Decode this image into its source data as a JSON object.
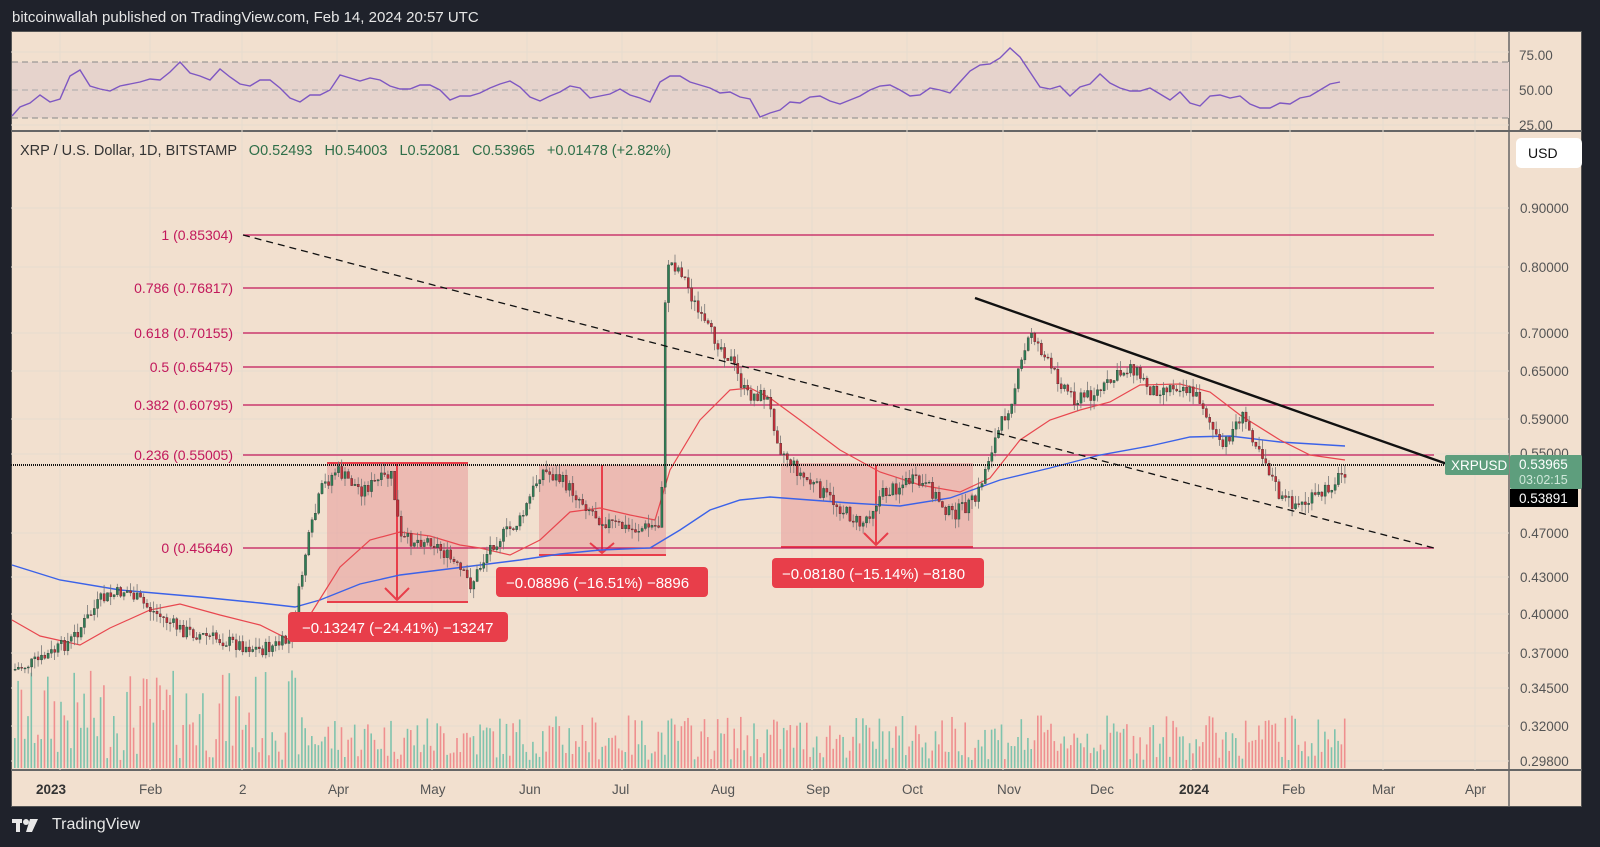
{
  "header": {
    "publish_line": "bitcoinwallah published on TradingView.com, Feb 14, 2024 20:57 UTC"
  },
  "legend": {
    "symbol": "XRP / U.S. Dollar, 1D, BITSTAMP",
    "open": "O0.52493",
    "high": "H0.54003",
    "low": "L0.52081",
    "close": "C0.53965",
    "change": "+0.01478 (+2.82%)"
  },
  "currency_button": "USD",
  "price_tag": {
    "symbol": "XRPUSD",
    "price": "0.53965",
    "countdown": "03:02:15",
    "crosshair_price": "0.53891"
  },
  "footer": {
    "brand": "TradingView"
  },
  "colors": {
    "background": "#f2e0cf",
    "up": "#2f7d55",
    "down": "#c0303a",
    "fib": "#c2185b",
    "ma50": "#e8474f",
    "ma200": "#3b62e8",
    "rsi": "#7e57c2",
    "measure": "#e83e4a",
    "price_tag": "#5e9e7d"
  },
  "chart_data": [
    {
      "type": "candlestick",
      "title": "XRP / U.S. Dollar, 1D, BITSTAMP",
      "ylabel": "USD",
      "xlabel": "",
      "y_axis_ticks": [
        "0.90000",
        "0.80000",
        "0.70000",
        "0.65000",
        "0.59000",
        "0.55000",
        "0.47000",
        "0.43000",
        "0.40000",
        "0.37000",
        "0.34500",
        "0.32000",
        "0.29800"
      ],
      "x_axis_ticks": [
        "2023",
        "Feb",
        "2",
        "Apr",
        "May",
        "Jun",
        "Jul",
        "Aug",
        "Sep",
        "Oct",
        "Nov",
        "Dec",
        "2024",
        "Feb",
        "Mar",
        "Apr"
      ],
      "ylim": [
        0.29,
        0.98
      ],
      "last_ohlc": {
        "open": 0.52493,
        "high": 0.54003,
        "low": 0.52081,
        "close": 0.53965,
        "change": 0.01478,
        "change_pct": 2.82
      },
      "fibonacci": [
        {
          "level": "1",
          "price": 0.85304,
          "label": "1 (0.85304)"
        },
        {
          "level": "0.786",
          "price": 0.76817,
          "label": "0.786 (0.76817)"
        },
        {
          "level": "0.618",
          "price": 0.70155,
          "label": "0.618 (0.70155)"
        },
        {
          "level": "0.5",
          "price": 0.65475,
          "label": "0.5 (0.65475)"
        },
        {
          "level": "0.382",
          "price": 0.60795,
          "label": "0.382 (0.60795)"
        },
        {
          "level": "0.236",
          "price": 0.55005,
          "label": "0.236 (0.55005)"
        },
        {
          "level": "0",
          "price": 0.45646,
          "label": "0 (0.45646)"
        }
      ],
      "measurements": [
        {
          "label": "−0.13247 (−24.41%) −13247",
          "change": -0.13247,
          "pct": -24.41
        },
        {
          "label": "−0.08896 (−16.51%) −8896",
          "change": -0.08896,
          "pct": -16.51
        },
        {
          "label": "−0.08180 (−15.14%) −8180",
          "change": -0.0818,
          "pct": -15.14
        }
      ],
      "closes_monthly_approx": {
        "x": [
          "Jan 2023",
          "Feb",
          "Mar",
          "Apr",
          "May",
          "Jun",
          "Jul",
          "Aug",
          "Sep",
          "Oct",
          "Nov",
          "Dec",
          "Jan 2024",
          "Feb 2024"
        ],
        "values": [
          0.34,
          0.4,
          0.38,
          0.5,
          0.46,
          0.48,
          0.47,
          0.7,
          0.52,
          0.51,
          0.6,
          0.62,
          0.62,
          0.54
        ]
      },
      "indicators": [
        "MA 50 (red)",
        "MA 200 (blue)",
        "Volume"
      ],
      "annotations": [
        "Descending resistance trendline",
        "Dashed descending support line",
        "Horizontal level at 0.53965"
      ]
    },
    {
      "type": "line",
      "title": "RSI",
      "y_axis_ticks": [
        "75.00",
        "50.00",
        "25.00"
      ],
      "bands": [
        30,
        50,
        70
      ],
      "ylim": [
        20,
        90
      ]
    }
  ]
}
